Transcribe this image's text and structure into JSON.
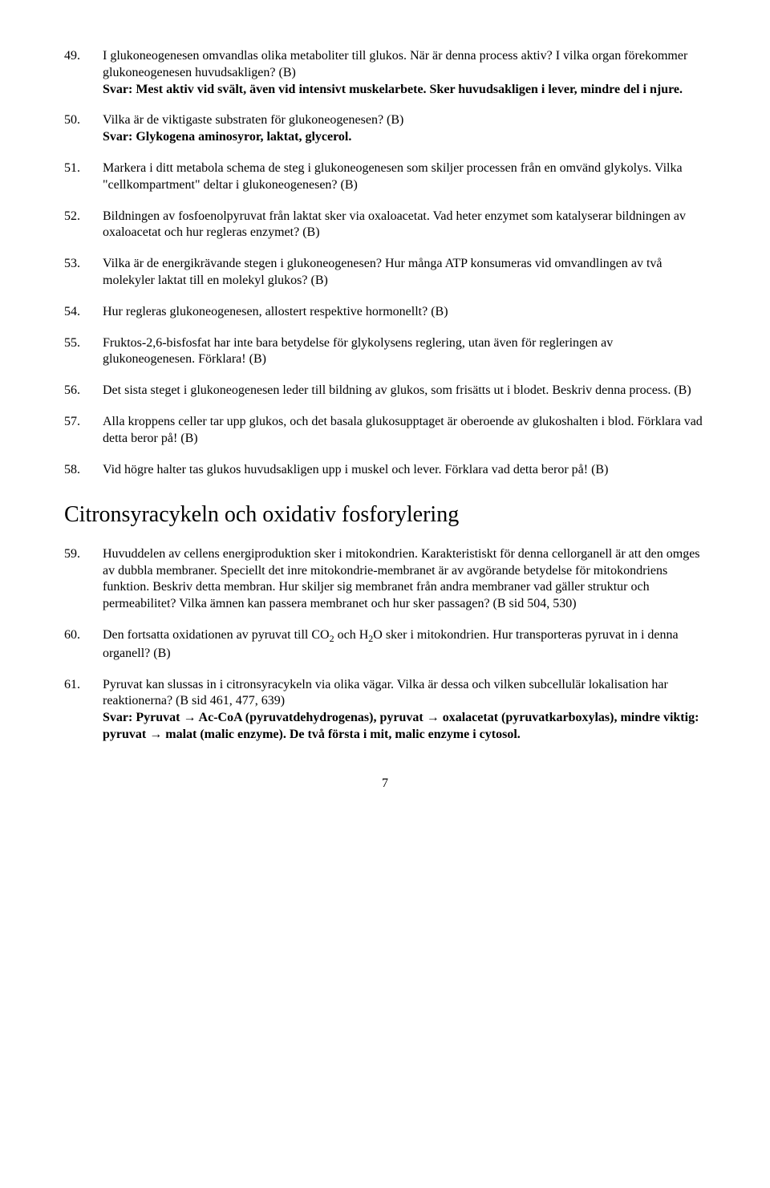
{
  "questions": [
    {
      "num": "49.",
      "text": "I glukoneogenesen omvandlas olika metaboliter till glukos. När är denna process aktiv? I vilka organ förekommer glukoneogenesen huvudsakligen? (B)",
      "answer": "Svar: Mest aktiv vid svält, även vid intensivt muskelarbete. Sker huvudsakligen i lever, mindre del i njure."
    },
    {
      "num": "50.",
      "text": "Vilka är de viktigaste substraten för glukoneogenesen? (B)",
      "answer": "Svar: Glykogena aminosyror, laktat, glycerol."
    },
    {
      "num": "51.",
      "text": "Markera i ditt metabola schema de steg i glukoneogenesen som skiljer processen från en omvänd glykolys. Vilka \"cellkompartment\" deltar i glukoneogenesen? (B)"
    },
    {
      "num": "52.",
      "text": "Bildningen av fosfoenolpyruvat från laktat sker via oxaloacetat. Vad heter enzymet som katalyserar bildningen av oxaloacetat och hur regleras enzymet? (B)"
    },
    {
      "num": "53.",
      "text": "Vilka är de energikrävande stegen i glukoneogenesen? Hur många ATP konsumeras vid omvandlingen av två molekyler laktat till en molekyl glukos? (B)"
    },
    {
      "num": "54.",
      "text": "Hur regleras glukoneogenesen, allostert respektive hormonellt? (B)"
    },
    {
      "num": "55.",
      "text": "Fruktos-2,6-bisfosfat har inte bara betydelse för glykolysens reglering, utan även för regleringen av glukoneogenesen. Förklara! (B)"
    },
    {
      "num": "56.",
      "text": "Det sista steget i glukoneogenesen leder till bildning av glukos, som frisätts ut i blodet. Beskriv denna process. (B)"
    },
    {
      "num": "57.",
      "text": "Alla kroppens celler tar upp glukos, och det basala glukosupptaget är oberoende av glukoshalten i blod. Förklara vad detta beror på! (B)"
    },
    {
      "num": "58.",
      "text": "Vid högre halter tas glukos huvudsakligen upp i muskel och lever. Förklara vad detta beror på! (B)"
    }
  ],
  "section_title": "Citronsyracykeln och oxidativ fosforylering",
  "questions2": [
    {
      "num": "59.",
      "text": "Huvuddelen av cellens energiproduktion sker i mitokondrien. Karakteristiskt för denna cellorganell är att den omges av dubbla membraner. Speciellt det inre mitokondrie-membranet är av avgörande betydelse för mitokondriens funktion. Beskriv detta membran. Hur skiljer sig membranet från andra membraner vad gäller struktur och permeabilitet? Vilka ämnen kan passera membranet och hur sker passagen? (B sid 504, 530)"
    },
    {
      "num": "60.",
      "text_html": "Den fortsatta oxidationen av pyruvat till CO<sub>2</sub> och H<sub>2</sub>O sker i mitokondrien. Hur transporteras pyruvat in i denna organell? (B)"
    },
    {
      "num": "61.",
      "text": "Pyruvat kan slussas in i citronsyracykeln via olika vägar. Vilka är dessa och vilken subcellulär lokalisation har reaktionerna? (B sid 461, 477, 639)",
      "answer_html": "Svar: Pyruvat <span class=\"arrow\">→</span> Ac-CoA (pyruvatdehydrogenas), pyruvat <span class=\"arrow\">→</span> oxalacetat (pyruvatkarboxylas), mindre viktig: pyruvat <span class=\"arrow\">→</span> malat (malic enzyme). De två första i mit, malic enzyme i cytosol."
    }
  ],
  "page_number": "7"
}
